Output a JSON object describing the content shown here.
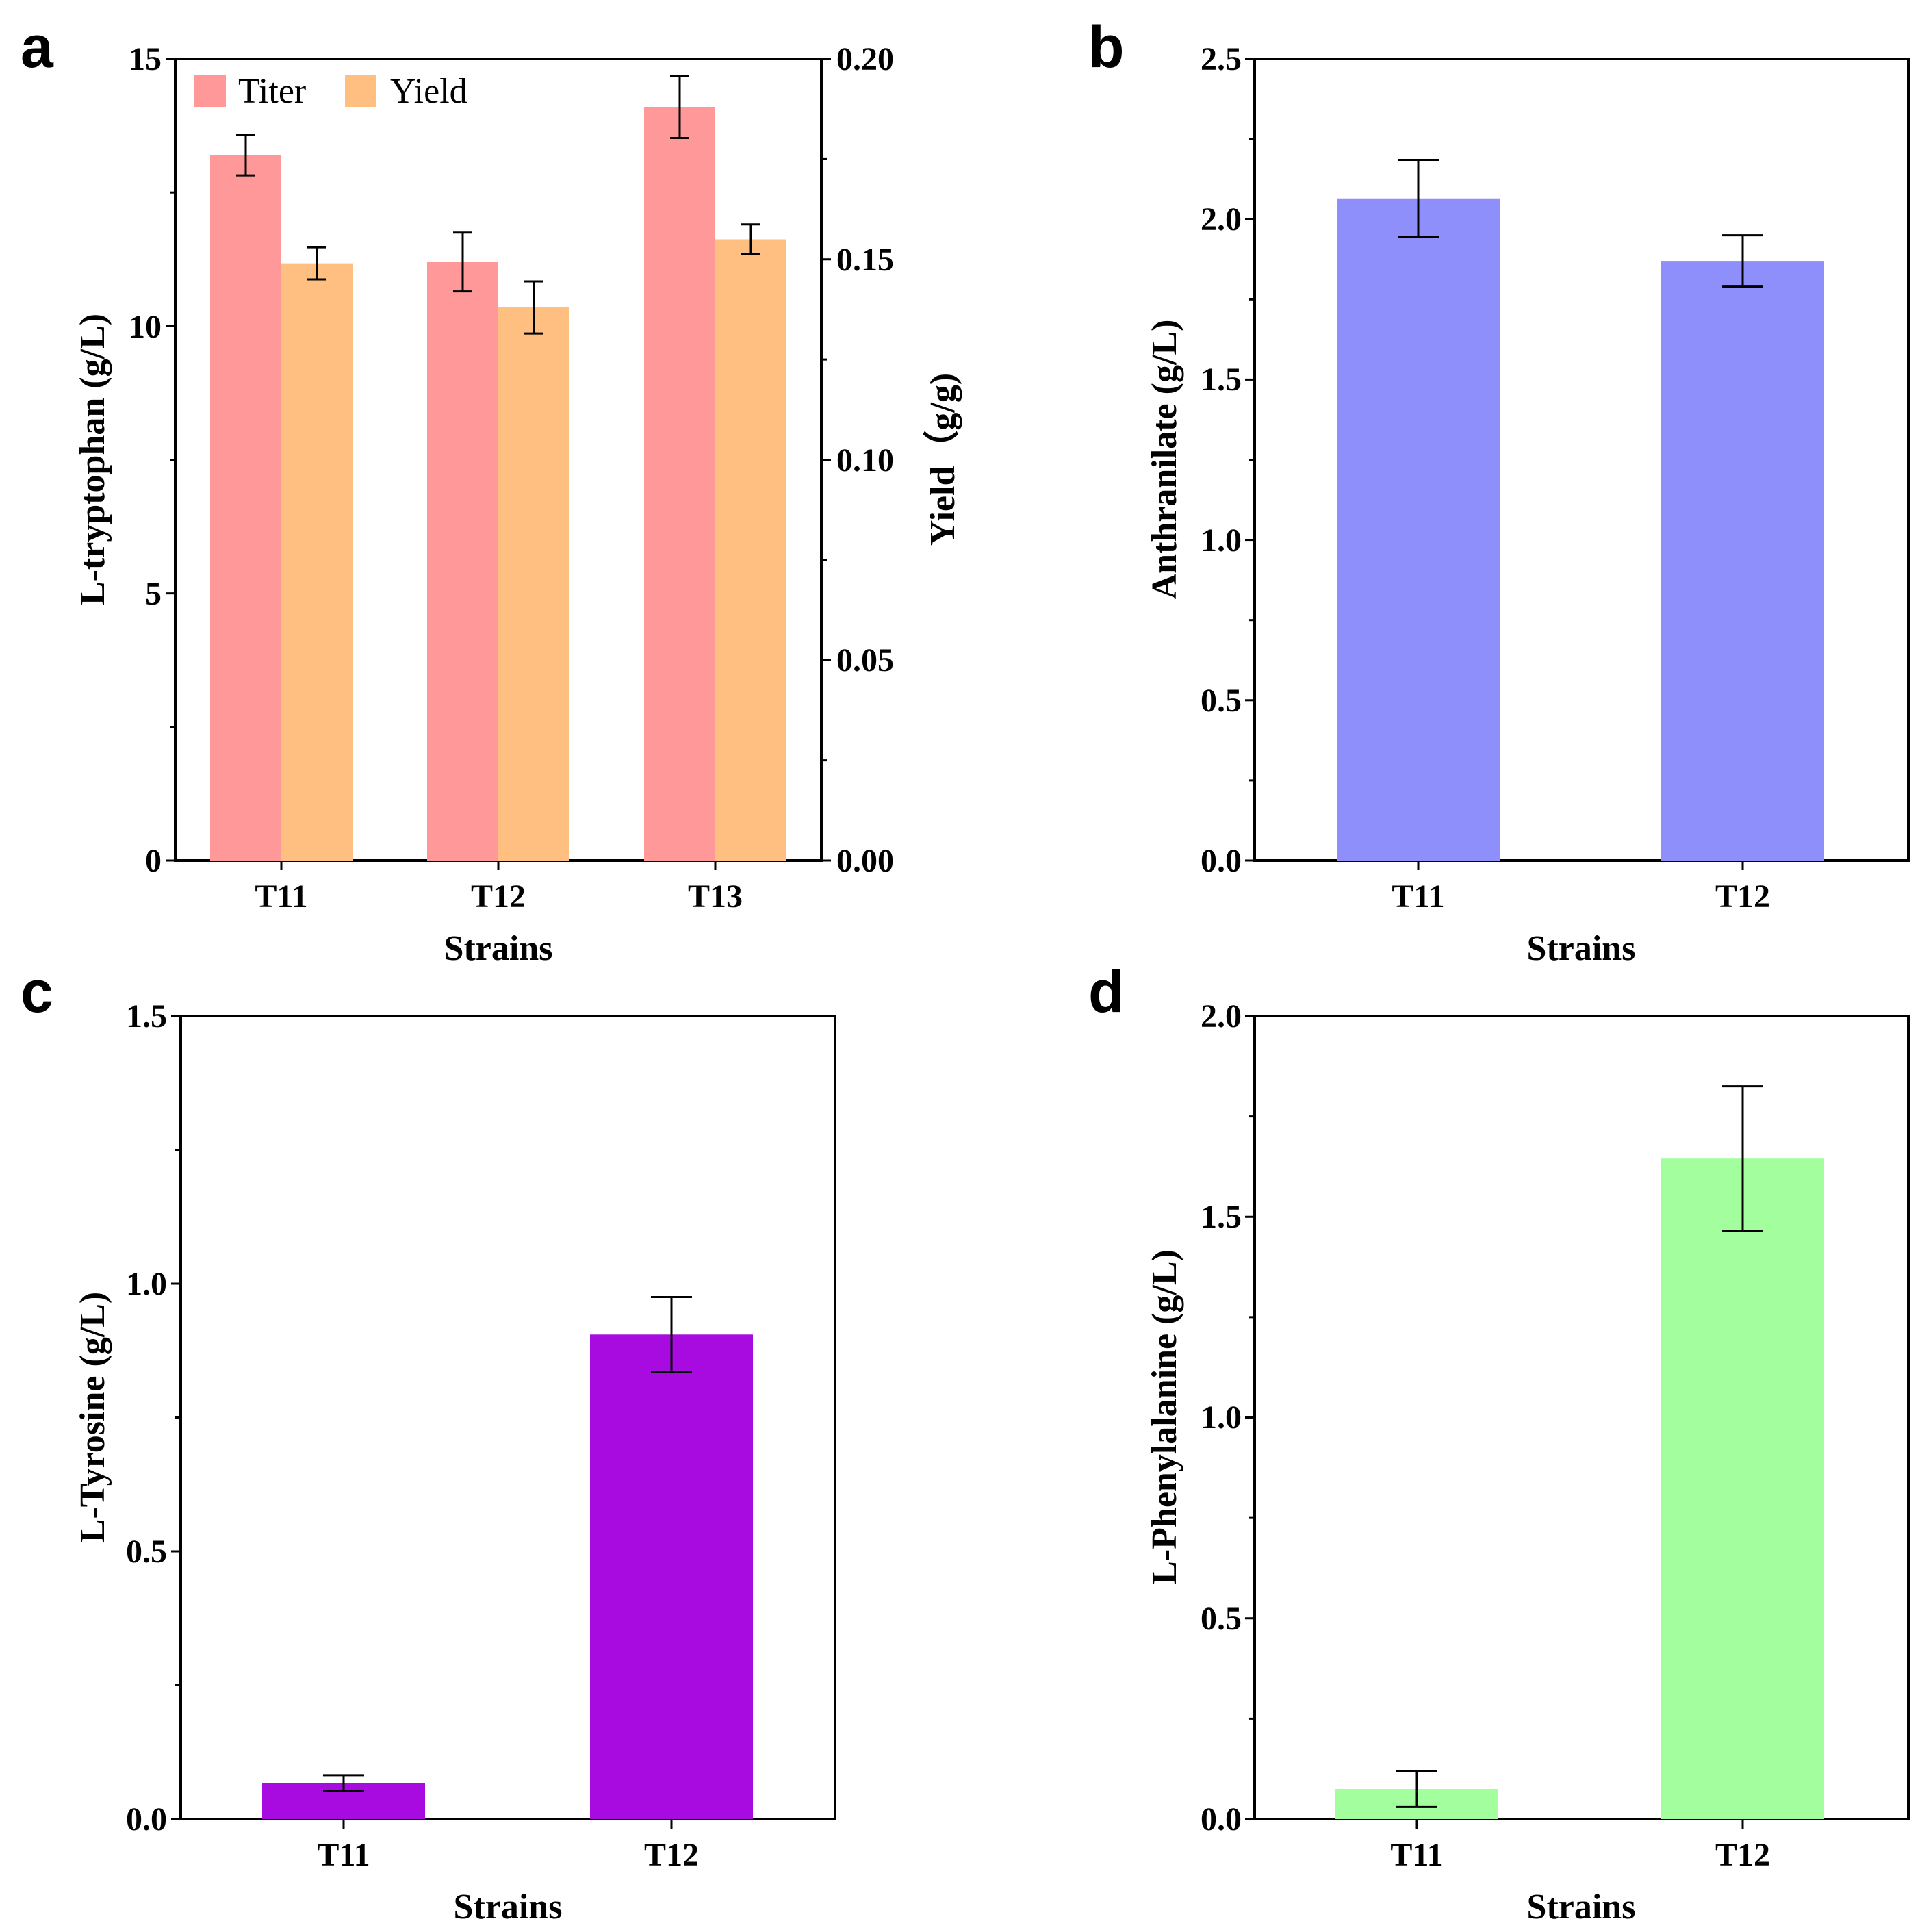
{
  "chart_data": [
    {
      "panel": "a",
      "type": "bar",
      "categories": [
        "T11",
        "T12",
        "T13"
      ],
      "series": [
        {
          "name": "Titer",
          "axis": "left",
          "color": "#FF9999",
          "values": [
            13.2,
            11.2,
            14.1
          ],
          "errors": [
            0.38,
            0.55,
            0.58
          ]
        },
        {
          "name": "Yield",
          "axis": "right",
          "color": "#FFBF80",
          "values": [
            0.149,
            0.138,
            0.155
          ],
          "errors": [
            0.004,
            0.0065,
            0.0037
          ]
        }
      ],
      "xlabel": "Strains",
      "ylabel": "L-tryptophan  (g/L)",
      "ylim": [
        0,
        15
      ],
      "yticks": [
        "0",
        "5",
        "10",
        "15"
      ],
      "ylabel_right": "Yield（g/g)",
      "ylim_right": [
        0,
        0.2
      ],
      "yticks_right": [
        "0.00",
        "0.05",
        "0.10",
        "0.15",
        "0.20"
      ],
      "legend_position": "top-left"
    },
    {
      "panel": "b",
      "type": "bar",
      "categories": [
        "T11",
        "T12"
      ],
      "series": [
        {
          "name": "Anthranilate",
          "color": "#8F8FFB",
          "values": [
            2.065,
            1.87
          ],
          "errors": [
            0.12,
            0.08
          ]
        }
      ],
      "xlabel": "Strains",
      "ylabel": "Anthranilate (g/L)",
      "ylim": [
        0,
        2.5
      ],
      "yticks": [
        "0.0",
        "0.5",
        "1.0",
        "1.5",
        "2.0",
        "2.5"
      ]
    },
    {
      "panel": "c",
      "type": "bar",
      "categories": [
        "T11",
        "T12"
      ],
      "series": [
        {
          "name": "L-Tyrosine",
          "color": "#A80BE0",
          "values": [
            0.067,
            0.905
          ],
          "errors": [
            0.015,
            0.07
          ]
        }
      ],
      "xlabel": "Strains",
      "ylabel": "L-Tyrosine (g/L)",
      "ylim": [
        0,
        1.5
      ],
      "yticks": [
        "0.0",
        "0.5",
        "1.0",
        "1.5"
      ]
    },
    {
      "panel": "d",
      "type": "bar",
      "categories": [
        "T11",
        "T12"
      ],
      "series": [
        {
          "name": "L-Phenylalanine",
          "color": "#A3FF9E",
          "values": [
            0.075,
            1.645
          ],
          "errors": [
            0.045,
            0.18
          ]
        }
      ],
      "xlabel": "Strains",
      "ylabel": "L-Phenylalanine (g/L)",
      "ylim": [
        0,
        2.0
      ],
      "yticks": [
        "0.0",
        "0.5",
        "1.0",
        "1.5",
        "2.0"
      ]
    }
  ]
}
